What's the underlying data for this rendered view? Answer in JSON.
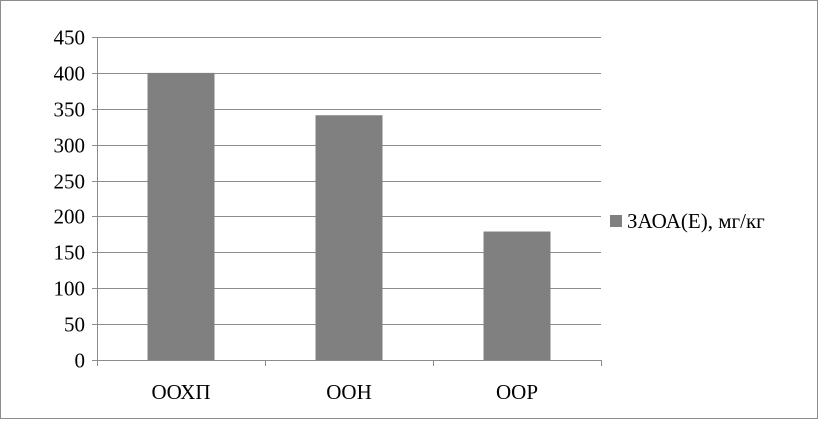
{
  "chart_data": {
    "type": "bar",
    "categories": [
      "ООХП",
      "ООН",
      "ООР"
    ],
    "series": [
      {
        "name": "ЗАОА(Е), мг/кг",
        "values": [
          400,
          341,
          179
        ],
        "color": "#808080"
      }
    ],
    "ylim": [
      0,
      450
    ],
    "yticks": [
      0,
      50,
      100,
      150,
      200,
      250,
      300,
      350,
      400,
      450
    ],
    "ytick_labels": [
      "0",
      "50",
      "100",
      "150",
      "200",
      "250",
      "300",
      "350",
      "400",
      "450"
    ],
    "title": "",
    "xlabel": "",
    "ylabel": "",
    "grid": true,
    "legend_position": "right",
    "colors": {
      "grid": "#8c8c8c",
      "axis": "#8c8c8c",
      "bar": "#808080",
      "frame": "#8c8c8c"
    }
  }
}
